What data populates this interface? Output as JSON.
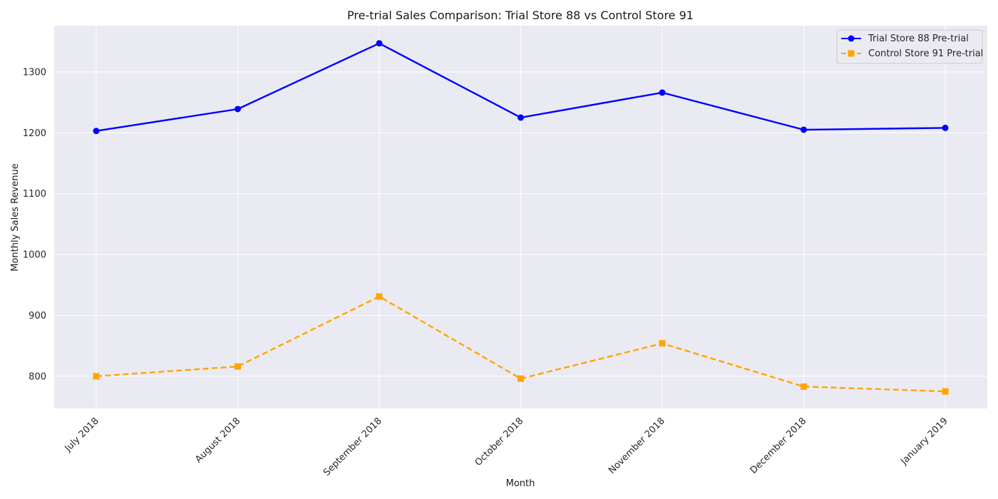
{
  "chart_data": {
    "type": "line",
    "title": "Pre-trial Sales Comparison: Trial Store 88 vs Control Store 91",
    "xlabel": "Month",
    "ylabel": "Monthly Sales Revenue",
    "categories": [
      "July 2018",
      "August 2018",
      "September 2018",
      "October 2018",
      "November 2018",
      "December 2018",
      "January 2019"
    ],
    "yticks": [
      800,
      900,
      1000,
      1100,
      1200,
      1300
    ],
    "ylim": [
      747,
      1376
    ],
    "grid": true,
    "legend_position": "top-right",
    "series": [
      {
        "name": "Trial Store 88 Pre-trial",
        "values": [
          1203,
          1239,
          1347,
          1225,
          1266,
          1205,
          1208
        ],
        "color": "#0000ff",
        "marker": "circle",
        "line_style": "solid"
      },
      {
        "name": "Control Store 91 Pre-trial",
        "values": [
          800,
          816,
          931,
          796,
          854,
          783,
          775
        ],
        "color": "#ffa500",
        "marker": "square",
        "line_style": "dashed"
      }
    ]
  }
}
